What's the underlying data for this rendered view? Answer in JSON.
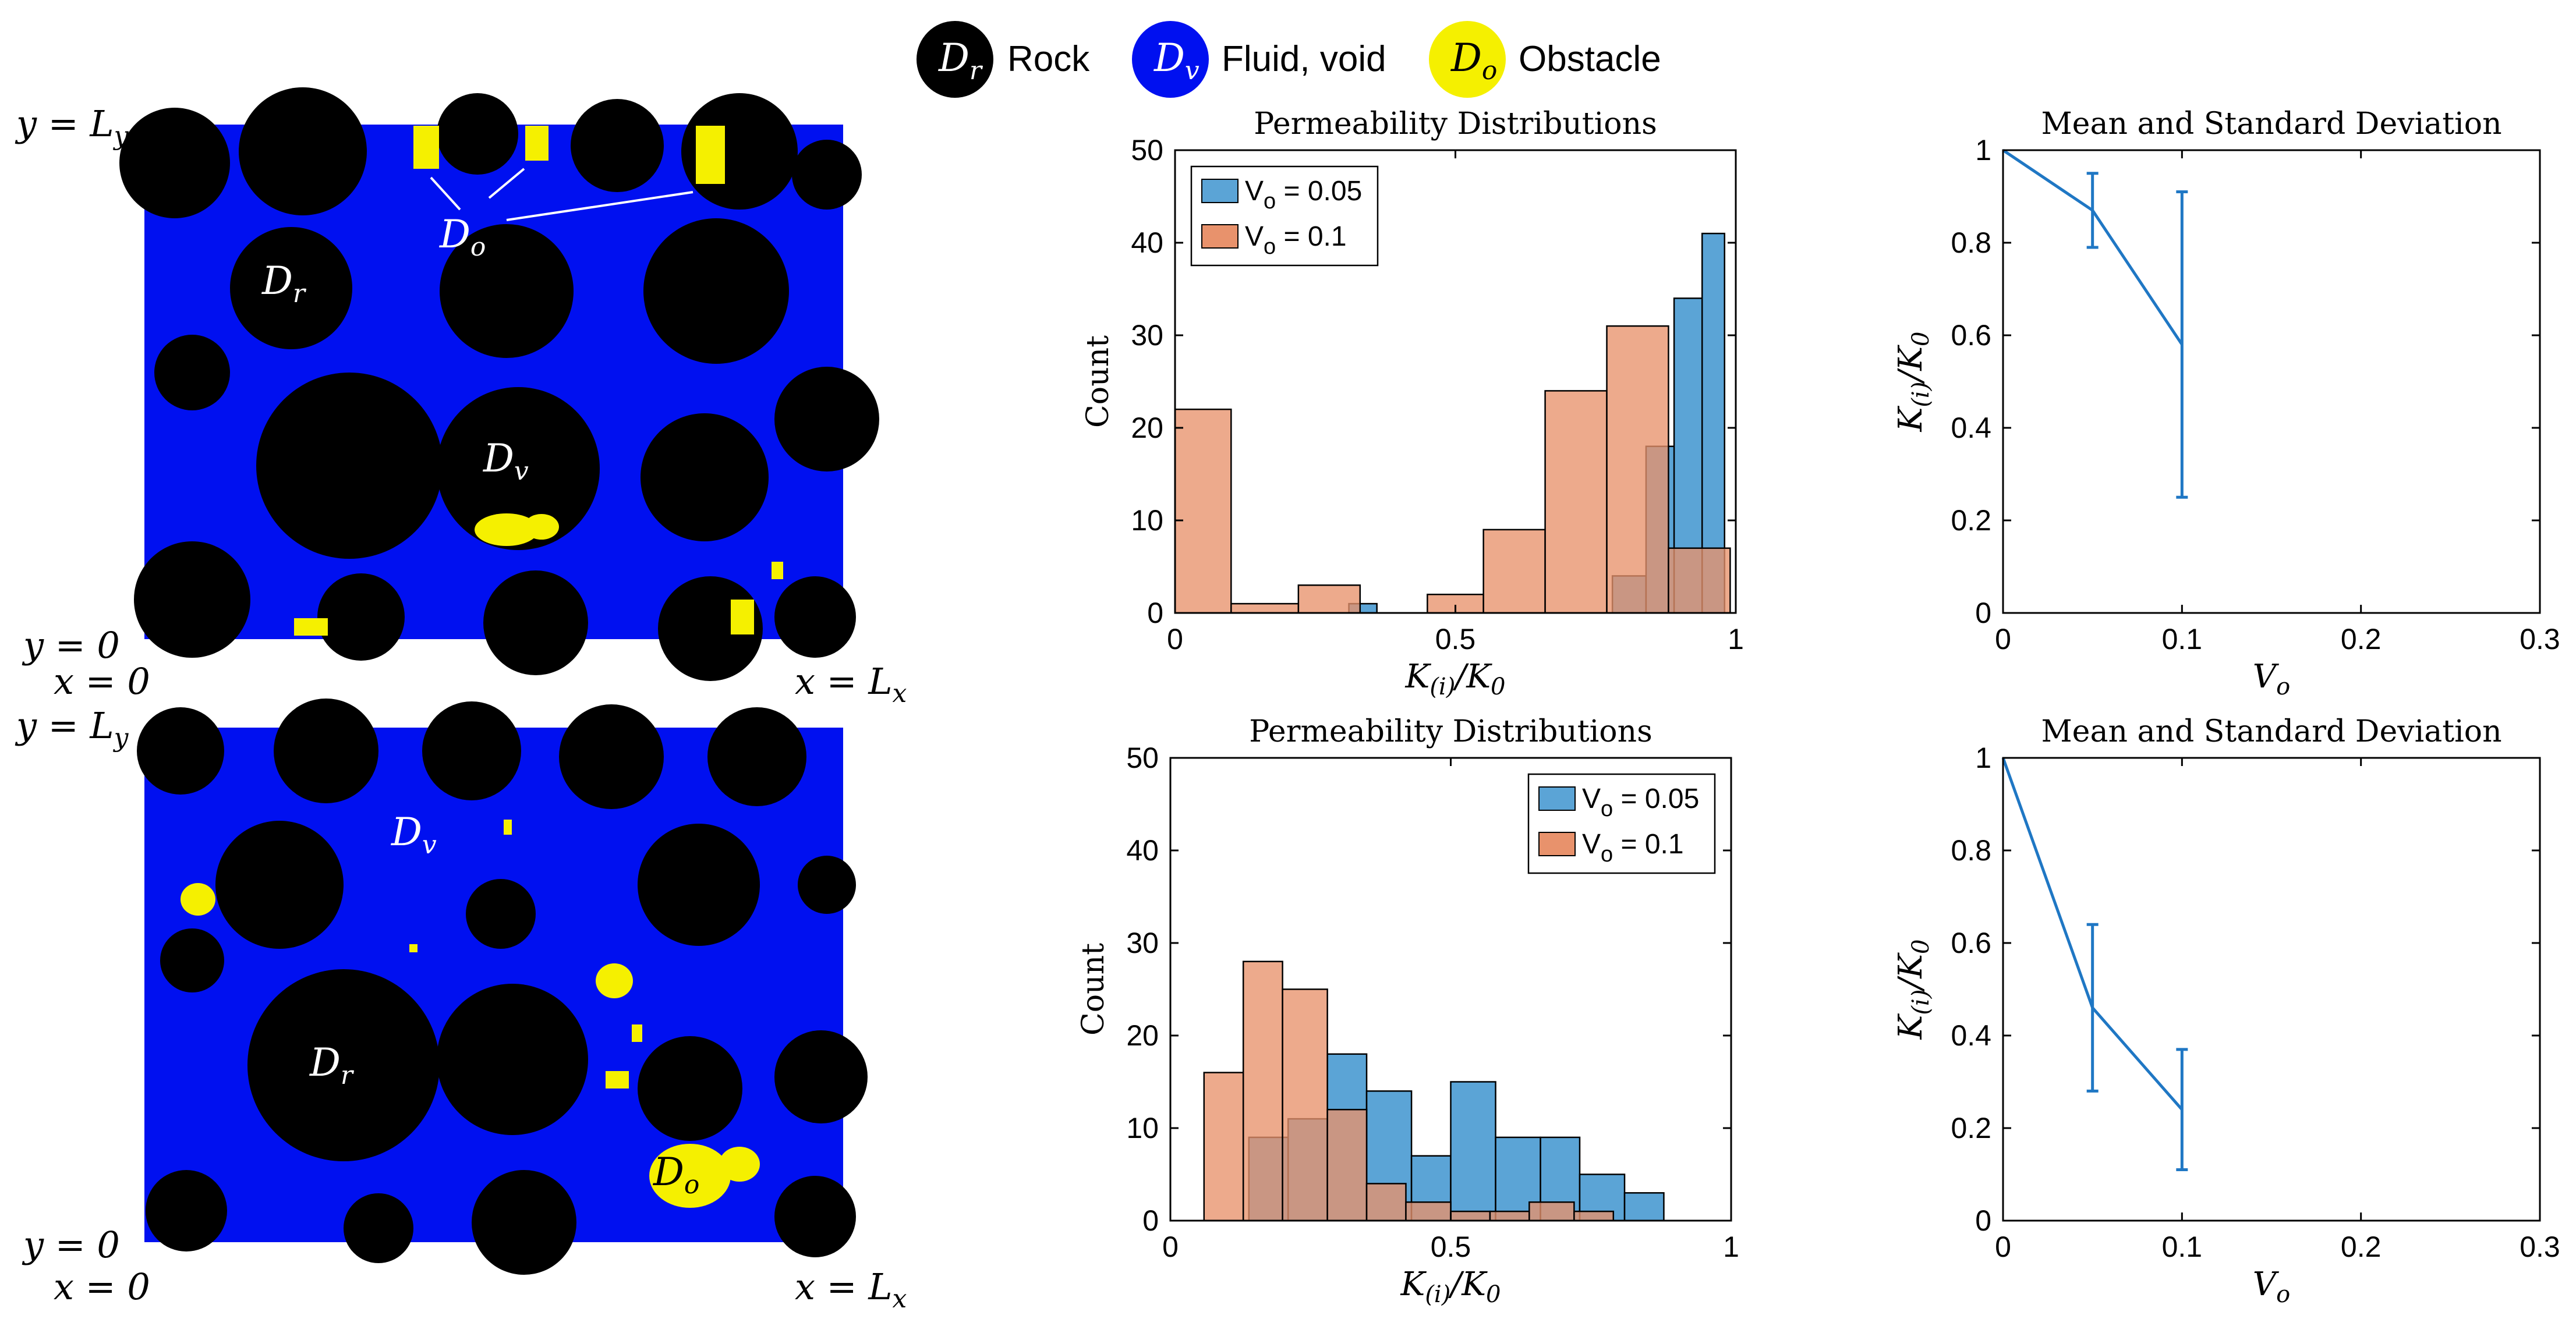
{
  "colors": {
    "rock": "#000000",
    "fluid": "#0010f0",
    "obstacle": "#f5f000",
    "hist_a": "#5ba4d6",
    "hist_b": "#e8926c",
    "line": "#1f77c4"
  },
  "key": {
    "items": [
      {
        "symbol": "D",
        "sub": "r",
        "label": "Rock",
        "color": "#000000",
        "text_color": "#ffffff"
      },
      {
        "symbol": "D",
        "sub": "v",
        "label": "Fluid, void",
        "color": "#0010f0",
        "text_color": "#ffffff"
      },
      {
        "symbol": "D",
        "sub": "o",
        "label": "Obstacle",
        "color": "#f5f000",
        "text_color": "#000000"
      }
    ]
  },
  "maps": {
    "top": {
      "y_top": "y = L",
      "y_top_sub": "y",
      "y_bottom": "y = 0",
      "x_left": "x = 0",
      "x_right": "x = L",
      "x_right_sub": "x",
      "labels": [
        {
          "name": "D",
          "sub": "o"
        },
        {
          "name": "D",
          "sub": "r"
        },
        {
          "name": "D",
          "sub": "v"
        }
      ]
    },
    "bottom": {
      "y_top": "y = L",
      "y_top_sub": "y",
      "y_bottom": "y = 0",
      "x_left": "x = 0",
      "x_right": "x = L",
      "x_right_sub": "x",
      "labels": [
        {
          "name": "D",
          "sub": "v"
        },
        {
          "name": "D",
          "sub": "r"
        },
        {
          "name": "D",
          "sub": "o"
        }
      ]
    }
  },
  "chart_data": [
    {
      "id": "hist_top",
      "type": "bar",
      "title": "Permeability Distributions",
      "xlabel": "K(i)/K0",
      "ylabel": "Count",
      "xlim": [
        0,
        1
      ],
      "ylim": [
        0,
        50
      ],
      "xticks": [
        "0",
        "0.5",
        "1"
      ],
      "yticks": [
        "0",
        "10",
        "20",
        "30",
        "40",
        "50"
      ],
      "legend_position": "top-left",
      "series": [
        {
          "name": "V",
          "sub": "o",
          "suffix": " = 0.05",
          "color": "#5ba4d6",
          "bins": [
            [
              0.31,
              0.36,
              1
            ],
            [
              0.78,
              0.84,
              4
            ],
            [
              0.84,
              0.89,
              4
            ],
            [
              0.84,
              0.91,
              18
            ],
            [
              0.89,
              0.94,
              34
            ],
            [
              0.94,
              0.98,
              41
            ]
          ]
        },
        {
          "name": "V",
          "sub": "o",
          "suffix": " = 0.1",
          "color": "#e8926c",
          "bins": [
            [
              0.0,
              0.1,
              22
            ],
            [
              0.1,
              0.22,
              1
            ],
            [
              0.22,
              0.33,
              3
            ],
            [
              0.33,
              0.45,
              0
            ],
            [
              0.45,
              0.55,
              2
            ],
            [
              0.55,
              0.66,
              9
            ],
            [
              0.66,
              0.77,
              24
            ],
            [
              0.77,
              0.88,
              31
            ],
            [
              0.88,
              0.99,
              7
            ]
          ]
        }
      ]
    },
    {
      "id": "hist_bottom",
      "type": "bar",
      "title": "Permeability Distributions",
      "xlabel": "K(i)/K0",
      "ylabel": "Count",
      "xlim": [
        0,
        1
      ],
      "ylim": [
        0,
        50
      ],
      "xticks": [
        "0",
        "0.5",
        "1"
      ],
      "yticks": [
        "0",
        "10",
        "20",
        "30",
        "40",
        "50"
      ],
      "legend_position": "top-right",
      "series": [
        {
          "name": "V",
          "sub": "o",
          "suffix": " = 0.05",
          "color": "#5ba4d6",
          "bins": [
            [
              0.14,
              0.21,
              9
            ],
            [
              0.21,
              0.28,
              11
            ],
            [
              0.28,
              0.35,
              18
            ],
            [
              0.35,
              0.43,
              14
            ],
            [
              0.43,
              0.5,
              7
            ],
            [
              0.5,
              0.58,
              15
            ],
            [
              0.58,
              0.66,
              9
            ],
            [
              0.66,
              0.73,
              9
            ],
            [
              0.73,
              0.81,
              5
            ],
            [
              0.81,
              0.88,
              3
            ]
          ]
        },
        {
          "name": "V",
          "sub": "o",
          "suffix": " = 0.1",
          "color": "#e8926c",
          "bins": [
            [
              0.06,
              0.13,
              16
            ],
            [
              0.13,
              0.2,
              28
            ],
            [
              0.2,
              0.28,
              25
            ],
            [
              0.28,
              0.35,
              12
            ],
            [
              0.35,
              0.42,
              4
            ],
            [
              0.42,
              0.5,
              2
            ],
            [
              0.5,
              0.57,
              1
            ],
            [
              0.57,
              0.64,
              1
            ],
            [
              0.64,
              0.72,
              2
            ],
            [
              0.72,
              0.79,
              1
            ]
          ]
        }
      ]
    },
    {
      "id": "err_top",
      "type": "line",
      "title": "Mean and Standard Deviation",
      "xlabel": "Vo",
      "ylabel": "K(i)/K0",
      "xlim": [
        0,
        0.3
      ],
      "ylim": [
        0,
        1
      ],
      "xticks": [
        "0",
        "0.1",
        "0.2",
        "0.3"
      ],
      "yticks": [
        "0",
        "0.2",
        "0.4",
        "0.6",
        "0.8",
        "1"
      ],
      "x": [
        0,
        0.05,
        0.1
      ],
      "y": [
        1.0,
        0.87,
        0.58
      ],
      "err": [
        0,
        0.08,
        0.33
      ]
    },
    {
      "id": "err_bottom",
      "type": "line",
      "title": "Mean and Standard Deviation",
      "xlabel": "Vo",
      "ylabel": "K(i)/K0",
      "xlim": [
        0,
        0.3
      ],
      "ylim": [
        0,
        1
      ],
      "xticks": [
        "0",
        "0.1",
        "0.2",
        "0.3"
      ],
      "yticks": [
        "0",
        "0.2",
        "0.4",
        "0.6",
        "0.8",
        "1"
      ],
      "x": [
        0,
        0.05,
        0.1
      ],
      "y": [
        1.0,
        0.46,
        0.24
      ],
      "err": [
        0,
        0.18,
        0.13
      ]
    }
  ]
}
